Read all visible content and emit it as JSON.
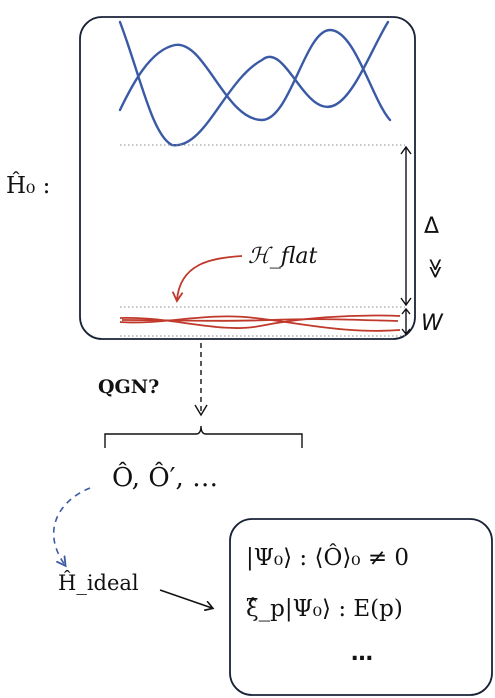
{
  "hamiltonian_label": "Ĥ₀ :",
  "flat_band_label": "ℋ_flat",
  "gap_label": "Δ",
  "much_greater_symbol": "≫",
  "bandwidth_label": "W",
  "arrow_question": "QGN?",
  "operators_label": "Ô,  Ô′,  …",
  "ideal_hamiltonian_label": "Ĥ_ideal",
  "result_lines": [
    "|Ψ₀⟩ : ⟨Ô⟩₀ ≠ 0",
    "ξ̂_p|Ψ₀⟩ : E(p)",
    "…"
  ],
  "colors": {
    "dispersive_band": "#3a5aa6",
    "flat_band": "#c0392b",
    "outline": "#1a2238",
    "dotted_line": "#888888"
  }
}
